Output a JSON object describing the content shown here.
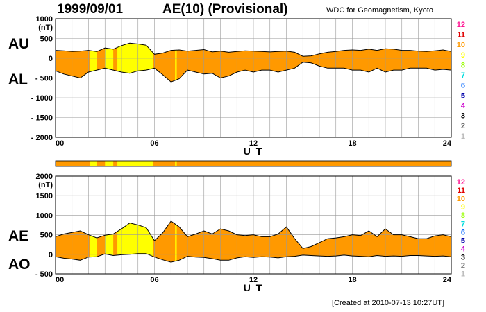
{
  "header": {
    "date": "1999/09/01",
    "title": "AE(10) (Provisional)",
    "source": "WDC for Geomagnetism, Kyoto",
    "created": "[Created at 2010-07-13 10:27UT]"
  },
  "scale": {
    "levels": [
      "12",
      "11",
      "10",
      "9",
      "8",
      "7",
      "6",
      "5",
      "4",
      "3",
      "2",
      "1"
    ],
    "colors": [
      "#ff1493",
      "#e00000",
      "#ff9900",
      "#ffff00",
      "#99ff00",
      "#00dddd",
      "#0066ff",
      "#0000aa",
      "#cc00cc",
      "#000000",
      "#666666",
      "#bbbbbb"
    ]
  },
  "chart_data": [
    {
      "type": "area",
      "panel": "AU/AL",
      "labels": {
        "upper": "AU",
        "lower": "AL"
      },
      "unit": "(nT)",
      "xlabel": "U T",
      "xlim": [
        0,
        24
      ],
      "xticks": [
        "00",
        "06",
        "12",
        "18",
        "24"
      ],
      "ylim": [
        -2000,
        1000
      ],
      "yticks": [
        "1000",
        "500",
        "0",
        "- 500",
        "- 1000",
        "- 1500",
        "- 2000"
      ],
      "ytick_values": [
        1000,
        500,
        0,
        -500,
        -1000,
        -1500,
        -2000
      ],
      "grid": true,
      "fill_color": "#ff9900",
      "highlight_color": "#ffff00",
      "highlight_intervals": [
        [
          2.1,
          2.5
        ],
        [
          3.0,
          3.5
        ],
        [
          3.75,
          5.9
        ],
        [
          7.25,
          7.35
        ]
      ],
      "x": [
        0,
        0.5,
        1,
        1.5,
        2,
        2.5,
        3,
        3.5,
        4,
        4.5,
        5,
        5.5,
        6,
        6.5,
        7,
        7.5,
        8,
        8.5,
        9,
        9.5,
        10,
        10.5,
        11,
        11.5,
        12,
        12.5,
        13,
        13.5,
        14,
        14.5,
        15,
        15.5,
        16,
        16.5,
        17,
        17.5,
        18,
        18.5,
        19,
        19.5,
        20,
        20.5,
        21,
        21.5,
        22,
        22.5,
        23,
        23.5,
        24
      ],
      "series": [
        {
          "name": "AU",
          "values": [
            200,
            190,
            170,
            180,
            200,
            170,
            260,
            230,
            320,
            380,
            360,
            330,
            100,
            130,
            200,
            210,
            180,
            200,
            220,
            160,
            180,
            150,
            170,
            190,
            180,
            170,
            160,
            170,
            180,
            150,
            50,
            60,
            110,
            150,
            170,
            200,
            210,
            200,
            230,
            200,
            240,
            230,
            200,
            200,
            180,
            170,
            190,
            210,
            170
          ]
        },
        {
          "name": "AL",
          "values": [
            -320,
            -400,
            -450,
            -500,
            -350,
            -300,
            -250,
            -300,
            -350,
            -380,
            -320,
            -300,
            -250,
            -420,
            -600,
            -520,
            -300,
            -350,
            -400,
            -380,
            -500,
            -450,
            -350,
            -300,
            -350,
            -300,
            -300,
            -350,
            -300,
            -250,
            -100,
            -120,
            -200,
            -250,
            -250,
            -250,
            -300,
            -300,
            -350,
            -250,
            -350,
            -300,
            -300,
            -250,
            -250,
            -250,
            -300,
            -280,
            -300
          ]
        }
      ]
    },
    {
      "type": "area",
      "panel": "AE/AO",
      "labels": {
        "upper": "AE",
        "lower": "AO"
      },
      "unit": "(nT)",
      "xlabel": "U T",
      "xlim": [
        0,
        24
      ],
      "xticks": [
        "00",
        "06",
        "12",
        "18",
        "24"
      ],
      "ylim": [
        -500,
        2000
      ],
      "yticks": [
        "2000",
        "1500",
        "1000",
        "500",
        "0",
        "- 500"
      ],
      "ytick_values": [
        2000,
        1500,
        1000,
        500,
        0,
        -500
      ],
      "grid": true,
      "fill_color": "#ff9900",
      "highlight_color": "#ffff00",
      "highlight_intervals": [
        [
          2.1,
          2.5
        ],
        [
          3.0,
          3.5
        ],
        [
          3.75,
          5.9
        ],
        [
          7.25,
          7.35
        ]
      ],
      "x": [
        0,
        0.5,
        1,
        1.5,
        2,
        2.5,
        3,
        3.5,
        4,
        4.5,
        5,
        5.5,
        6,
        6.5,
        7,
        7.5,
        8,
        8.5,
        9,
        9.5,
        10,
        10.5,
        11,
        11.5,
        12,
        12.5,
        13,
        13.5,
        14,
        14.5,
        15,
        15.5,
        16,
        16.5,
        17,
        17.5,
        18,
        18.5,
        19,
        19.5,
        20,
        20.5,
        21,
        21.5,
        22,
        22.5,
        23,
        23.5,
        24
      ],
      "series": [
        {
          "name": "AE",
          "values": [
            450,
            520,
            560,
            600,
            500,
            420,
            490,
            520,
            650,
            800,
            750,
            680,
            350,
            550,
            850,
            700,
            450,
            520,
            600,
            520,
            650,
            600,
            500,
            480,
            500,
            450,
            450,
            520,
            700,
            400,
            150,
            200,
            300,
            400,
            420,
            450,
            500,
            480,
            600,
            450,
            650,
            500,
            500,
            450,
            400,
            400,
            470,
            500,
            450
          ]
        },
        {
          "name": "AO",
          "values": [
            -60,
            -100,
            -120,
            -150,
            -70,
            -60,
            10,
            -30,
            -10,
            0,
            20,
            20,
            -70,
            -140,
            -200,
            -150,
            -50,
            -70,
            -80,
            -110,
            -150,
            -150,
            -90,
            -60,
            -80,
            -60,
            -70,
            -90,
            -60,
            -50,
            -20,
            -30,
            -40,
            -50,
            -40,
            -20,
            -40,
            -50,
            -60,
            -30,
            -50,
            -40,
            -50,
            -30,
            -30,
            -40,
            -50,
            -40,
            -60
          ]
        }
      ]
    }
  ]
}
